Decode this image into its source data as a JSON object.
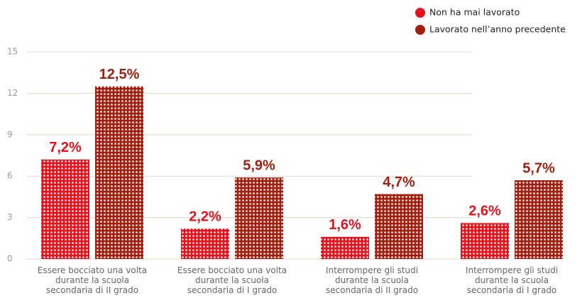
{
  "chart_data": {
    "type": "bar",
    "categories": [
      [
        "Essere bocciato una volta",
        "durante la scuola",
        "secondaria di II grado"
      ],
      [
        "Essere bocciato una volta",
        "durante la scuola",
        "secondaria di I grado"
      ],
      [
        "Interrompere gli studi",
        "durante la scuola",
        "secondaria di II grado"
      ],
      [
        "Interrompere gli studi",
        "durante la scuola",
        "secondaria di I grado"
      ]
    ],
    "series": [
      {
        "name": "Non ha mai lavorato",
        "color": "#e5121b",
        "values": [
          7.2,
          2.2,
          1.6,
          2.6
        ],
        "value_labels": [
          "7,2%",
          "2,2%",
          "1,6%",
          "2,6%"
        ]
      },
      {
        "name": "Lavorato nell’anno precedente",
        "color": "#a21f0f",
        "values": [
          12.5,
          5.9,
          4.7,
          5.7
        ],
        "value_labels": [
          "12,5%",
          "5,9%",
          "4,7%",
          "5,7%"
        ]
      }
    ],
    "ylim": [
      0,
      15
    ],
    "yticks": [
      0,
      3,
      6,
      9,
      12,
      15
    ],
    "grid": true,
    "legend": "top-right"
  }
}
